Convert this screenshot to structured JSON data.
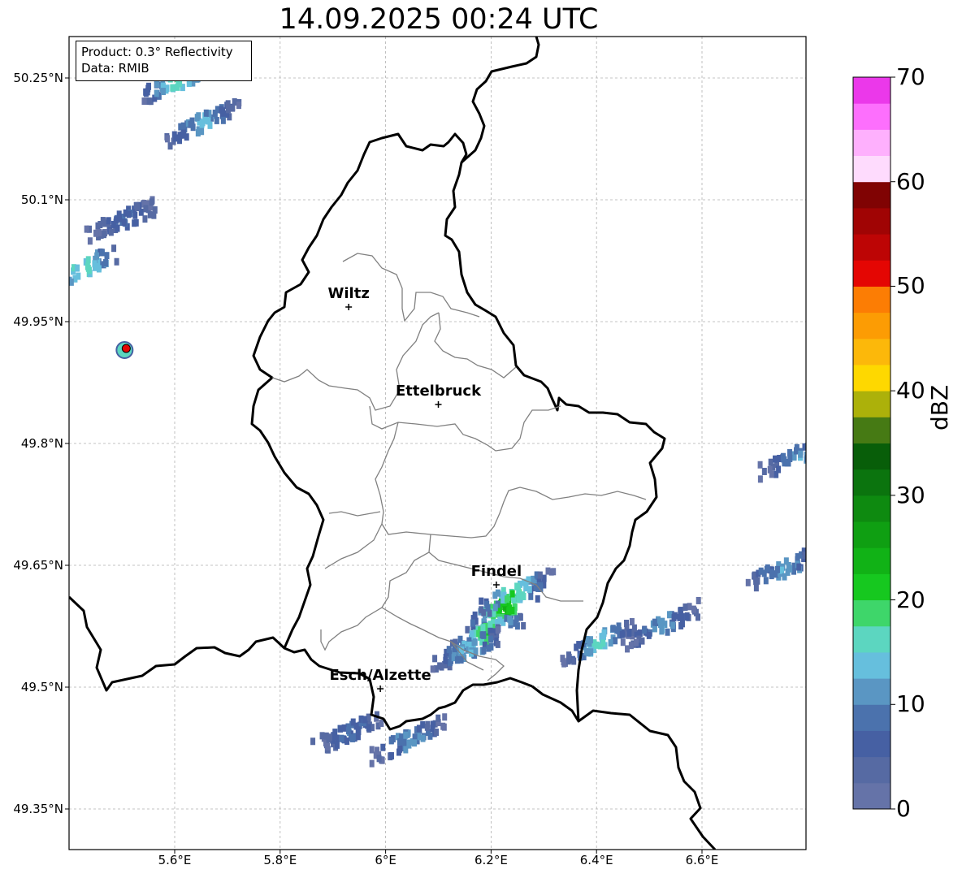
{
  "title": "14.09.2025 00:24 UTC",
  "info": {
    "product": "Product: 0.3° Reflectivity",
    "data": "Data: RMIB"
  },
  "lat_ticks": [
    {
      "lat": 50.25,
      "label": "50.25°N"
    },
    {
      "lat": 50.1,
      "label": "50.1°N"
    },
    {
      "lat": 49.95,
      "label": "49.95°N"
    },
    {
      "lat": 49.8,
      "label": "49.8°N"
    },
    {
      "lat": 49.65,
      "label": "49.65°N"
    },
    {
      "lat": 49.5,
      "label": "49.5°N"
    },
    {
      "lat": 49.35,
      "label": "49.35°N"
    }
  ],
  "lon_ticks": [
    {
      "lon": 5.6,
      "label": "5.6°E"
    },
    {
      "lon": 5.8,
      "label": "5.8°E"
    },
    {
      "lon": 6.0,
      "label": "6°E"
    },
    {
      "lon": 6.2,
      "label": "6.2°E"
    },
    {
      "lon": 6.4,
      "label": "6.4°E"
    },
    {
      "lon": 6.6,
      "label": "6.6°E"
    }
  ],
  "cities": [
    {
      "name": "Wiltz",
      "lon": 5.93,
      "lat": 49.968
    },
    {
      "name": "Ettelbruck",
      "lon": 6.1,
      "lat": 49.848
    },
    {
      "name": "Findel",
      "lon": 6.21,
      "lat": 49.626
    },
    {
      "name": "Esch/Alzette",
      "lon": 5.99,
      "lat": 49.498
    }
  ],
  "radar_site": {
    "lon": 5.505,
    "lat": 49.915
  },
  "colorbar": {
    "label": "dBZ",
    "min": 0,
    "max": 70,
    "ticks": [
      "0",
      "10",
      "20",
      "30",
      "40",
      "50",
      "60",
      "70"
    ],
    "colors": [
      "#6573a8",
      "#566aa3",
      "#4660a3",
      "#4b72ad",
      "#5a96c3",
      "#66bfdd",
      "#5cd6c0",
      "#3ed66a",
      "#16c81f",
      "#11b216",
      "#0f9f12",
      "#0e8a10",
      "#0b740e",
      "#085e09",
      "#467a14",
      "#acb10a",
      "#fed800",
      "#fcb80a",
      "#fc9c04",
      "#fc7d04",
      "#e40603",
      "#bd0505",
      "#a00404",
      "#800303",
      "#fedbfd",
      "#feb0fd",
      "#fd6ffd",
      "#eb38ea"
    ]
  },
  "echoes": [
    {
      "lon": 6.22,
      "lat": 49.6,
      "dbz": 24
    },
    {
      "lon": 6.19,
      "lat": 49.57,
      "dbz": 22
    },
    {
      "lon": 6.24,
      "lat": 49.62,
      "dbz": 20
    },
    {
      "lon": 6.15,
      "lat": 49.55,
      "dbz": 14
    },
    {
      "lon": 6.52,
      "lat": 49.58,
      "dbz": 12
    },
    {
      "lon": 6.75,
      "lat": 49.65,
      "dbz": 13
    },
    {
      "lon": 6.4,
      "lat": 49.56,
      "dbz": 16
    },
    {
      "lon": 6.04,
      "lat": 49.44,
      "dbz": 12
    },
    {
      "lon": 5.93,
      "lat": 49.45,
      "dbz": 9
    },
    {
      "lon": 5.65,
      "lat": 50.2,
      "dbz": 14
    },
    {
      "lon": 5.6,
      "lat": 50.25,
      "dbz": 18
    },
    {
      "lon": 5.5,
      "lat": 50.08,
      "dbz": 8
    },
    {
      "lon": 5.42,
      "lat": 50.02,
      "dbz": 18
    },
    {
      "lon": 6.78,
      "lat": 49.79,
      "dbz": 12
    }
  ]
}
